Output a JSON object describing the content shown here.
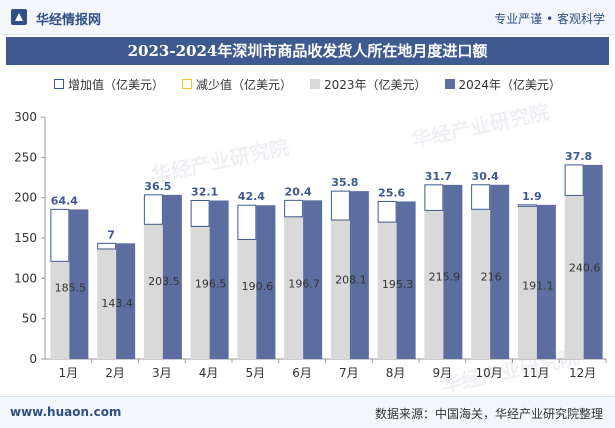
{
  "header": {
    "brand": "华经情报网",
    "tagline": "专业严谨 • 客观科学",
    "title": "2023-2024年深圳市商品收发货人所在地月度进口额"
  },
  "legend": {
    "increase": "增加值（亿美元）",
    "decrease": "减少值（亿美元）",
    "y2023": "2023年（亿美元）",
    "y2024": "2024年（亿美元）"
  },
  "footer": {
    "site": "www.huaon.com",
    "source": "数据来源：中国海关，华经产业研究院整理"
  },
  "watermark": "华经产业研究院",
  "colors": {
    "bar2023": "#d9d9d9",
    "bar2024": "#5b6e9f",
    "increaseBorder": "#3e5a8e",
    "decreaseBorder": "#f2c230",
    "title_bg": "#3e5a8e"
  },
  "chart_data": {
    "type": "bar",
    "categories": [
      "1月",
      "2月",
      "3月",
      "4月",
      "5月",
      "6月",
      "7月",
      "8月",
      "9月",
      "10月",
      "11月",
      "12月"
    ],
    "series": [
      {
        "name": "2023年（亿美元）",
        "values": [
          121.1,
          136.4,
          167.0,
          164.4,
          148.2,
          176.3,
          172.3,
          169.7,
          184.2,
          185.6,
          189.2,
          202.8
        ]
      },
      {
        "name": "2024年（亿美元）",
        "values": [
          185.5,
          143.4,
          203.5,
          196.5,
          190.6,
          196.7,
          208.1,
          195.3,
          215.9,
          216,
          191.1,
          240.6
        ]
      },
      {
        "name": "增加值（亿美元）",
        "values": [
          64.4,
          7,
          36.5,
          32.1,
          42.4,
          20.4,
          35.8,
          25.6,
          31.7,
          30.4,
          1.9,
          37.8
        ]
      }
    ],
    "ylim": [
      0,
      300
    ],
    "yticks": [
      0,
      50,
      100,
      150,
      200,
      250,
      300
    ],
    "grid": false,
    "legend": "top"
  }
}
